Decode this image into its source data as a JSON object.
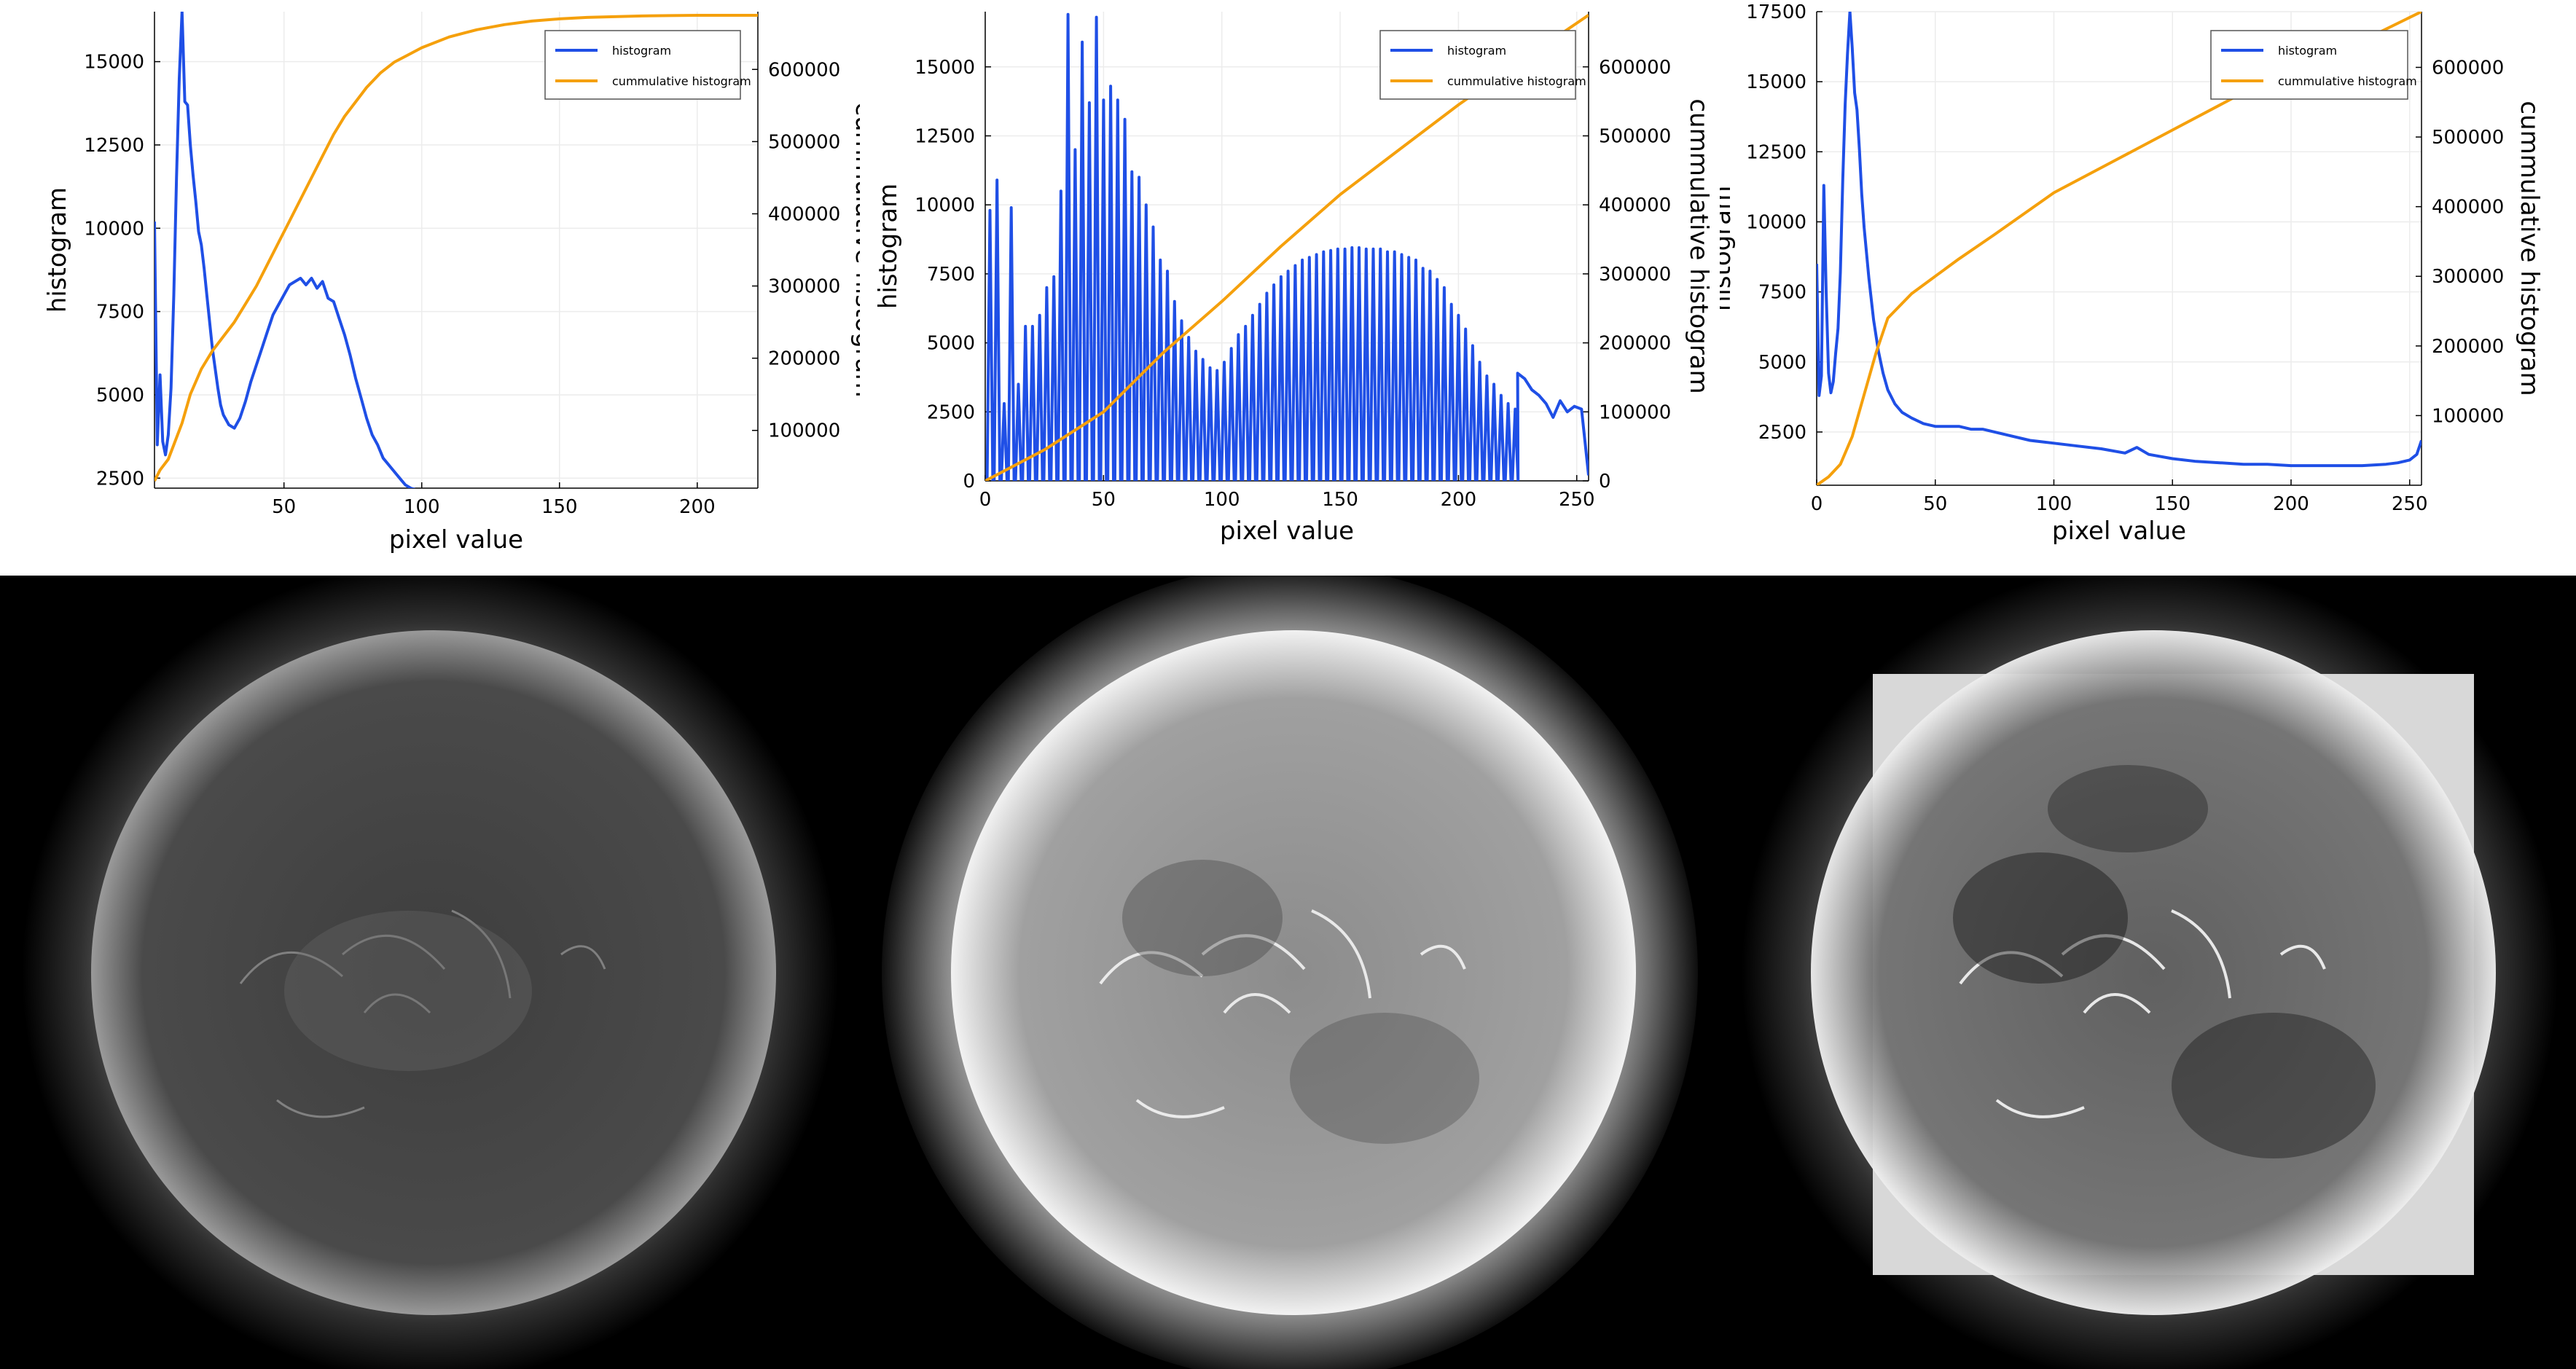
{
  "chart_data": [
    {
      "type": "line",
      "xlabel": "pixel value",
      "ylabel": "histogram",
      "y2label": "cummulative histogram",
      "xlim": [
        3,
        222
      ],
      "ylim": [
        2200,
        16500
      ],
      "y2lim": [
        20000,
        680000
      ],
      "xticks": [
        50,
        100,
        150,
        200
      ],
      "yticks": [
        2500,
        5000,
        7500,
        10000,
        12500,
        15000
      ],
      "y2ticks": [
        100000,
        200000,
        300000,
        400000,
        500000,
        600000
      ],
      "grid": true,
      "legend": "top-right",
      "series": [
        {
          "name": "histogram",
          "color": "#1f4fe6",
          "axis": "left",
          "x": [
            3,
            4,
            5,
            6,
            7,
            8,
            9,
            10,
            11,
            12,
            13,
            14,
            15,
            16,
            17,
            18,
            19,
            20,
            21,
            22,
            23,
            24,
            25,
            26,
            27,
            28,
            30,
            32,
            34,
            36,
            38,
            40,
            42,
            44,
            46,
            48,
            50,
            52,
            54,
            56,
            58,
            60,
            62,
            64,
            66,
            68,
            70,
            72,
            74,
            76,
            78,
            80,
            82,
            84,
            86,
            88,
            90,
            92,
            94,
            96,
            98
          ],
          "values": [
            10200,
            3500,
            5600,
            3600,
            3200,
            3800,
            5200,
            8000,
            11500,
            14500,
            16500,
            13800,
            13700,
            12500,
            11600,
            10800,
            9900,
            9500,
            8800,
            8000,
            7200,
            6400,
            5800,
            5200,
            4700,
            4400,
            4100,
            4000,
            4300,
            4800,
            5400,
            5900,
            6400,
            6900,
            7400,
            7700,
            8000,
            8300,
            8400,
            8500,
            8300,
            8500,
            8200,
            8400,
            7900,
            7800,
            7300,
            6800,
            6200,
            5500,
            4900,
            4300,
            3800,
            3500,
            3100,
            2900,
            2700,
            2500,
            2300,
            2200,
            2150
          ]
        },
        {
          "name": "cummulative histogram",
          "color": "#f5a00c",
          "axis": "right",
          "x": [
            3,
            5,
            8,
            10,
            13,
            16,
            20,
            24,
            28,
            32,
            36,
            40,
            44,
            48,
            52,
            56,
            60,
            64,
            68,
            72,
            76,
            80,
            85,
            90,
            95,
            100,
            110,
            120,
            130,
            140,
            150,
            160,
            170,
            180,
            190,
            200,
            210,
            222
          ],
          "values": [
            30000,
            45000,
            60000,
            80000,
            110000,
            150000,
            185000,
            210000,
            230000,
            250000,
            275000,
            300000,
            330000,
            360000,
            390000,
            420000,
            450000,
            480000,
            510000,
            535000,
            555000,
            575000,
            595000,
            610000,
            620000,
            630000,
            645000,
            655000,
            662000,
            667000,
            670000,
            672000,
            673000,
            674000,
            674500,
            675000,
            675000,
            675000
          ]
        }
      ]
    },
    {
      "type": "line",
      "xlabel": "pixel value",
      "ylabel": "histogram",
      "y2label": "cummulative histogram",
      "xlim": [
        0,
        255
      ],
      "ylim": [
        0,
        17000
      ],
      "y2lim": [
        0,
        680000
      ],
      "xticks": [
        0,
        50,
        100,
        150,
        200,
        250
      ],
      "yticks": [
        0,
        2500,
        5000,
        7500,
        10000,
        12500,
        15000
      ],
      "y2ticks": [
        0,
        100000,
        200000,
        300000,
        400000,
        500000,
        600000
      ],
      "grid": true,
      "legend": "top-right",
      "series": [
        {
          "name": "histogram",
          "color": "#1f4fe6",
          "axis": "left",
          "envelope_x": [
            2,
            5,
            8,
            11,
            14,
            17,
            20,
            23,
            26,
            29,
            32,
            35,
            38,
            41,
            44,
            47,
            50,
            53,
            56,
            59,
            62,
            65,
            68,
            71,
            74,
            77,
            80,
            83,
            86,
            89,
            92,
            95,
            98,
            101,
            104,
            107,
            110,
            113,
            116,
            119,
            122,
            125,
            128,
            131,
            134,
            137,
            140,
            143,
            146,
            149,
            152,
            155,
            158,
            161,
            164,
            167,
            170,
            173,
            176,
            179,
            182,
            185,
            188,
            191,
            194,
            197,
            200,
            203,
            206,
            209,
            212,
            215,
            218,
            221,
            224
          ],
          "envelope": [
            9800,
            10900,
            2800,
            9900,
            3500,
            5600,
            5600,
            6000,
            7000,
            7400,
            10500,
            16900,
            12000,
            15900,
            13700,
            16800,
            13800,
            14300,
            13800,
            13100,
            11200,
            11000,
            10000,
            9200,
            8000,
            7600,
            6500,
            5800,
            5200,
            4700,
            4400,
            4100,
            4000,
            4300,
            4800,
            5300,
            5600,
            6000,
            6400,
            6800,
            7100,
            7400,
            7600,
            7800,
            8000,
            8100,
            8200,
            8300,
            8350,
            8400,
            8400,
            8450,
            8450,
            8400,
            8400,
            8400,
            8300,
            8300,
            8200,
            8100,
            8000,
            7700,
            7600,
            7300,
            7000,
            6400,
            6000,
            5500,
            4900,
            4300,
            3800,
            3500,
            3100,
            2800,
            2600
          ],
          "tail_x": [
            225,
            228,
            231,
            234,
            237,
            240,
            243,
            246,
            249,
            252,
            255
          ],
          "tail": [
            3900,
            3700,
            3300,
            3100,
            2800,
            2300,
            2900,
            2500,
            2700,
            2600,
            200
          ]
        },
        {
          "name": "cummulative histogram",
          "color": "#f5a00c",
          "axis": "right",
          "x": [
            0,
            25,
            50,
            75,
            100,
            125,
            150,
            175,
            200,
            225,
            255
          ],
          "values": [
            0,
            45000,
            100000,
            185000,
            260000,
            340000,
            415000,
            480000,
            545000,
            605000,
            675000
          ]
        }
      ]
    },
    {
      "type": "line",
      "xlabel": "pixel value",
      "ylabel": "histogram",
      "y2label": "cummulative histogram",
      "xlim": [
        0,
        255
      ],
      "ylim": [
        600,
        17500
      ],
      "y2lim": [
        0,
        680000
      ],
      "xticks": [
        0,
        50,
        100,
        150,
        200,
        250
      ],
      "yticks": [
        2500,
        5000,
        7500,
        10000,
        12500,
        15000,
        17500
      ],
      "y2ticks": [
        100000,
        200000,
        300000,
        400000,
        500000,
        600000
      ],
      "grid": true,
      "legend": "top-right",
      "series": [
        {
          "name": "histogram",
          "color": "#1f4fe6",
          "axis": "left",
          "x": [
            0,
            1,
            2,
            3,
            4,
            5,
            6,
            7,
            8,
            9,
            10,
            11,
            12,
            13,
            14,
            15,
            16,
            17,
            18,
            19,
            20,
            22,
            24,
            26,
            28,
            30,
            33,
            36,
            40,
            45,
            50,
            55,
            60,
            65,
            70,
            80,
            90,
            100,
            110,
            120,
            130,
            135,
            140,
            150,
            160,
            170,
            180,
            190,
            200,
            210,
            220,
            230,
            240,
            245,
            250,
            253,
            255
          ],
          "values": [
            8500,
            3800,
            4500,
            11300,
            7500,
            4600,
            3900,
            4300,
            5300,
            6200,
            8200,
            11500,
            14200,
            16000,
            17500,
            16200,
            14600,
            14000,
            12600,
            11000,
            9800,
            8000,
            6500,
            5400,
            4600,
            4000,
            3500,
            3200,
            3000,
            2800,
            2700,
            2700,
            2700,
            2600,
            2600,
            2400,
            2200,
            2100,
            2000,
            1900,
            1750,
            1950,
            1700,
            1550,
            1450,
            1400,
            1350,
            1350,
            1300,
            1300,
            1300,
            1300,
            1350,
            1400,
            1500,
            1700,
            2200
          ]
        },
        {
          "name": "cummulative histogram",
          "color": "#f5a00c",
          "axis": "right",
          "x": [
            0,
            5,
            10,
            15,
            20,
            25,
            30,
            40,
            50,
            60,
            75,
            100,
            125,
            150,
            175,
            200,
            225,
            255
          ],
          "values": [
            0,
            12000,
            30000,
            70000,
            130000,
            190000,
            240000,
            275000,
            300000,
            325000,
            360000,
            420000,
            465000,
            510000,
            555000,
            600000,
            630000,
            680000
          ]
        }
      ]
    }
  ]
}
